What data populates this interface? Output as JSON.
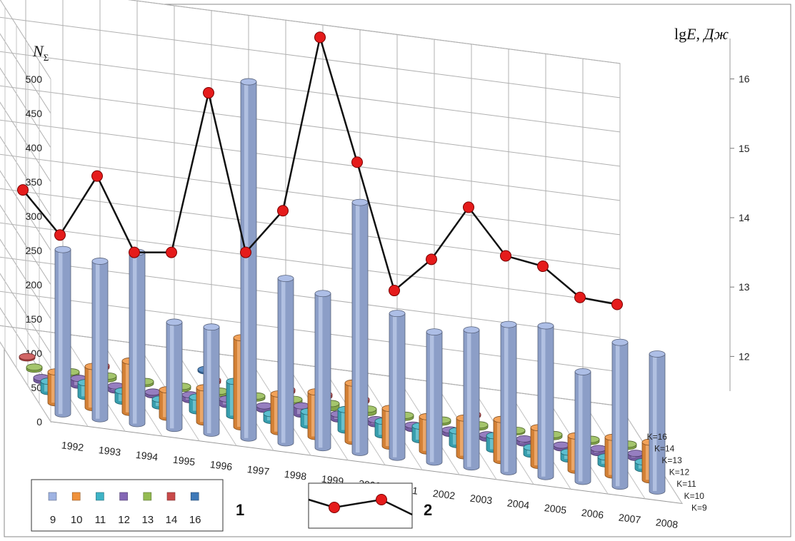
{
  "chart_data": {
    "type": "bar",
    "categories": [
      "1992",
      "1993",
      "1994",
      "1995",
      "1996",
      "1997",
      "1998",
      "1999",
      "2000",
      "2001",
      "2002",
      "2003",
      "2004",
      "2005",
      "2006",
      "2007",
      "2008"
    ],
    "class_labels": [
      "K=9",
      "K=10",
      "K=11",
      "K=12",
      "K=13",
      "K=14",
      "K=16"
    ],
    "y_left_label_main": "N",
    "y_left_label_sub": "Σ",
    "y_left_ticks": [
      0,
      50,
      100,
      150,
      200,
      250,
      300,
      350,
      400,
      450,
      500
    ],
    "ylim_left": [
      0,
      500
    ],
    "y_right_label_main": "lg",
    "y_right_label_italic": "E",
    "y_right_label_unit": ", Дж",
    "y_right_ticks": [
      12,
      13,
      14,
      15,
      16
    ],
    "ylim_right": [
      11.5,
      16.5
    ],
    "grid": true,
    "series": [
      {
        "name": "9",
        "color": "#9fb3e2",
        "values": [
          240,
          230,
          250,
          155,
          155,
          520,
          240,
          225,
          365,
          210,
          190,
          200,
          215,
          220,
          160,
          210,
          200
        ]
      },
      {
        "name": "10",
        "color": "#f0923c",
        "values": [
          45,
          60,
          75,
          40,
          50,
          130,
          55,
          65,
          85,
          55,
          50,
          55,
          60,
          55,
          50,
          55,
          55
        ]
      },
      {
        "name": "11",
        "color": "#3eb3c6",
        "values": [
          15,
          20,
          15,
          10,
          20,
          50,
          10,
          20,
          30,
          20,
          20,
          20,
          20,
          10,
          10,
          10,
          10
        ]
      },
      {
        "name": "12",
        "color": "#8467b5",
        "values": [
          4,
          10,
          6,
          4,
          7,
          8,
          5,
          12,
          7,
          6,
          5,
          5,
          5,
          6,
          4,
          6,
          6
        ]
      },
      {
        "name": "13",
        "color": "#94bb52",
        "values": [
          3,
          3,
          4,
          3,
          3,
          3,
          3,
          5,
          6,
          5,
          3,
          3,
          3,
          2,
          3,
          3,
          3
        ]
      },
      {
        "name": "14",
        "color": "#c94a4a",
        "values": [
          2,
          0,
          3,
          0,
          0,
          3,
          0,
          3,
          3,
          3,
          0,
          0,
          2,
          0,
          0,
          0,
          0
        ]
      },
      {
        "name": "16",
        "color": "#3f79b8",
        "values": [
          0,
          0,
          0,
          0,
          0,
          2,
          0,
          0,
          0,
          2,
          0,
          0,
          0,
          0,
          0,
          0,
          0
        ]
      }
    ],
    "energy_series": {
      "name": "2",
      "values": [
        14.4,
        13.75,
        14.6,
        13.5,
        13.5,
        15.8,
        13.5,
        14.1,
        16.6,
        14.8,
        12.95,
        13.4,
        14.15,
        13.45,
        13.3,
        12.85,
        12.75
      ]
    },
    "legend": {
      "series_items": [
        "9",
        "10",
        "11",
        "12",
        "13",
        "14",
        "16"
      ],
      "series_group_label": "1",
      "line_group_label": "2"
    }
  }
}
